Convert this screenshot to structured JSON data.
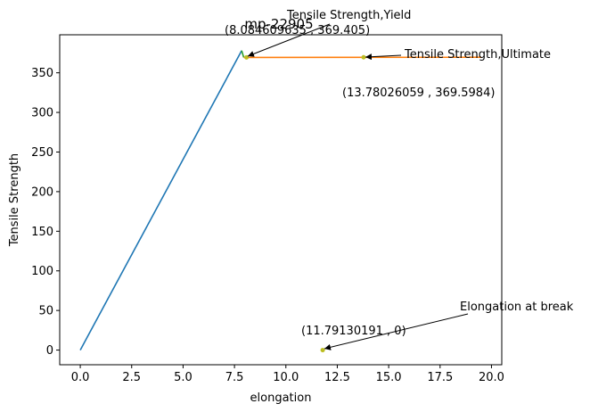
{
  "chart_data": {
    "type": "line",
    "title": "mp-22905",
    "xlabel": "elongation",
    "ylabel": "Tensile Strength",
    "xlim": [
      -1.0,
      20.5
    ],
    "ylim": [
      -18.5,
      398.0
    ],
    "xticks": [
      "0.0",
      "2.5",
      "5.0",
      "7.5",
      "10.0",
      "12.5",
      "15.0",
      "17.5",
      "20.0"
    ],
    "xtick_values": [
      0,
      2.5,
      5,
      7.5,
      10,
      12.5,
      15,
      17.5,
      20
    ],
    "yticks": [
      "0",
      "50",
      "100",
      "150",
      "200",
      "250",
      "300",
      "350"
    ],
    "ytick_values": [
      0,
      50,
      100,
      150,
      200,
      250,
      300,
      350
    ],
    "grid": false,
    "legend": false,
    "series": [
      {
        "color": "#1f77b4",
        "x": [
          0,
          7.85
        ],
        "y": [
          0,
          378
        ]
      },
      {
        "color": "#2ca02c",
        "x": [
          7.85,
          7.95
        ],
        "y": [
          378,
          369.4
        ]
      },
      {
        "color": "#ff7f0e",
        "x": [
          7.95,
          19.5
        ],
        "y": [
          369.4,
          369.6
        ]
      }
    ],
    "points": [
      {
        "x": 8.084609635,
        "y": 369.405,
        "color": "#bcbd22"
      },
      {
        "x": 13.78026059,
        "y": 369.5984,
        "color": "#bcbd22"
      },
      {
        "x": 11.79130191,
        "y": 0,
        "color": "#bcbd22"
      }
    ],
    "annotations": [
      {
        "label": "Tensile Strength,Yield",
        "coords": "(8.084609635 , 369.405)",
        "target_x": 8.084609635,
        "target_y": 369.405
      },
      {
        "label": "Tensile Strength,Ultimate",
        "coords": "(13.78026059 , 369.5984)",
        "target_x": 13.78026059,
        "target_y": 369.5984
      },
      {
        "label": "Elongation at break",
        "coords": "(11.79130191 , 0)",
        "target_x": 11.79130191,
        "target_y": 0
      }
    ]
  }
}
